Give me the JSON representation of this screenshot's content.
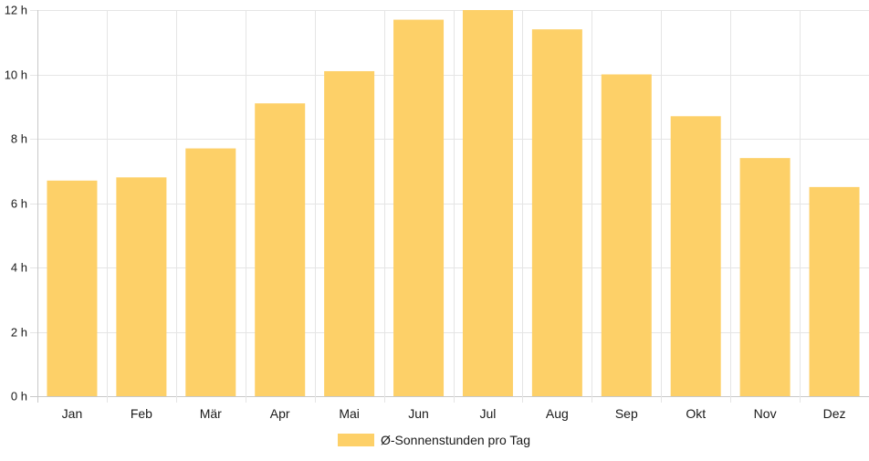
{
  "chart_data": {
    "type": "bar",
    "categories": [
      "Jan",
      "Feb",
      "Mär",
      "Apr",
      "Mai",
      "Jun",
      "Jul",
      "Aug",
      "Sep",
      "Okt",
      "Nov",
      "Dez"
    ],
    "series": [
      {
        "name": "Ø-Sonnenstunden pro Tag",
        "values": [
          6.7,
          6.8,
          7.7,
          9.1,
          10.1,
          11.7,
          12.0,
          11.4,
          10.0,
          8.7,
          7.4,
          6.5
        ]
      }
    ],
    "y_ticks": [
      "0 h",
      "2 h",
      "4 h",
      "6 h",
      "8 h",
      "10 h",
      "12 h"
    ],
    "ylim": [
      0,
      12
    ],
    "grid": true,
    "legend_position": "bottom",
    "colors": {
      "bar": "#fdd068",
      "grid": "#e5e5e5",
      "axis": "#c8c8c8",
      "text": "#1a1a1a"
    }
  }
}
